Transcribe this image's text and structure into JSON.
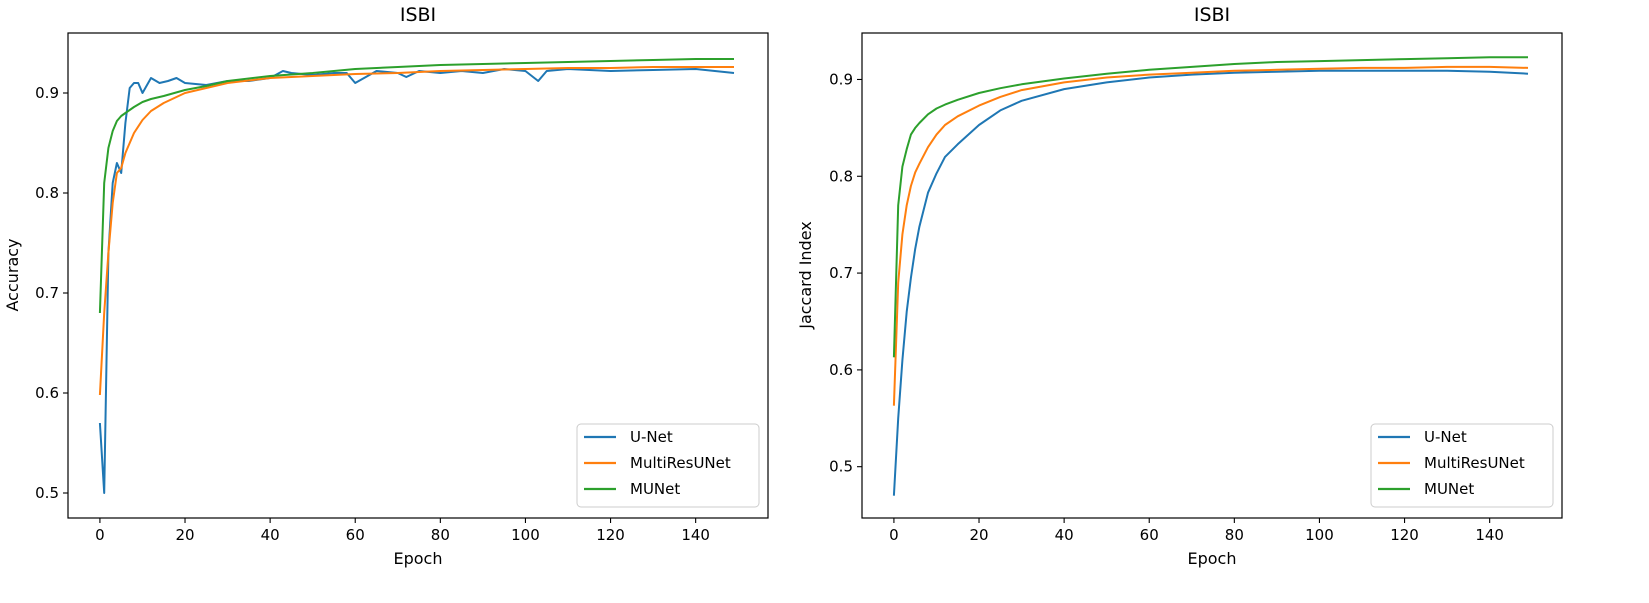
{
  "colors": {
    "U-Net": "#1f77b4",
    "MultiResUNet": "#ff7f0e",
    "MUNet": "#2ca02c"
  },
  "chart_data": [
    {
      "type": "line",
      "title": "ISBI",
      "xlabel": "Epoch",
      "ylabel": "Accuracy",
      "xlim": [
        -7.5,
        157
      ],
      "ylim": [
        0.475,
        0.96
      ],
      "xticks": [
        0,
        20,
        40,
        60,
        80,
        100,
        120,
        140
      ],
      "yticks": [
        0.5,
        0.6,
        0.7,
        0.8,
        0.9
      ],
      "ytick_labels": [
        "0.5",
        "0.6",
        "0.7",
        "0.8",
        "0.9"
      ],
      "legend": "lower-right",
      "series": [
        {
          "name": "U-Net",
          "x": [
            0,
            1,
            2,
            3,
            4,
            5,
            6,
            7,
            8,
            9,
            10,
            12,
            14,
            16,
            18,
            20,
            25,
            30,
            35,
            40,
            43,
            45,
            50,
            55,
            58,
            60,
            65,
            70,
            72,
            75,
            80,
            85,
            90,
            95,
            100,
            103,
            105,
            110,
            120,
            130,
            140,
            149
          ],
          "y": [
            0.57,
            0.5,
            0.74,
            0.81,
            0.83,
            0.82,
            0.87,
            0.905,
            0.91,
            0.91,
            0.9,
            0.915,
            0.91,
            0.912,
            0.915,
            0.91,
            0.908,
            0.912,
            0.912,
            0.915,
            0.922,
            0.92,
            0.918,
            0.92,
            0.92,
            0.91,
            0.922,
            0.92,
            0.916,
            0.922,
            0.92,
            0.922,
            0.92,
            0.924,
            0.922,
            0.912,
            0.922,
            0.924,
            0.922,
            0.923,
            0.924,
            0.92
          ]
        },
        {
          "name": "MultiResUNet",
          "x": [
            0,
            1,
            2,
            3,
            4,
            5,
            6,
            8,
            10,
            12,
            15,
            20,
            25,
            30,
            40,
            50,
            60,
            70,
            80,
            90,
            100,
            110,
            120,
            130,
            140,
            149
          ],
          "y": [
            0.598,
            0.68,
            0.74,
            0.79,
            0.82,
            0.825,
            0.84,
            0.86,
            0.873,
            0.882,
            0.89,
            0.9,
            0.905,
            0.91,
            0.915,
            0.917,
            0.919,
            0.92,
            0.922,
            0.923,
            0.924,
            0.925,
            0.925,
            0.926,
            0.926,
            0.926
          ]
        },
        {
          "name": "MUNet",
          "x": [
            0,
            1,
            2,
            3,
            4,
            5,
            6,
            8,
            10,
            12,
            15,
            20,
            25,
            30,
            40,
            50,
            60,
            70,
            80,
            90,
            100,
            110,
            120,
            130,
            140,
            149
          ],
          "y": [
            0.68,
            0.81,
            0.845,
            0.862,
            0.872,
            0.877,
            0.88,
            0.886,
            0.891,
            0.894,
            0.897,
            0.903,
            0.907,
            0.912,
            0.917,
            0.92,
            0.924,
            0.926,
            0.928,
            0.929,
            0.93,
            0.931,
            0.932,
            0.933,
            0.934,
            0.934
          ]
        }
      ]
    },
    {
      "type": "line",
      "title": "ISBI",
      "xlabel": "Epoch",
      "ylabel": "Jaccard Index",
      "xlim": [
        -7.5,
        157
      ],
      "ylim": [
        0.447,
        0.948
      ],
      "xticks": [
        0,
        20,
        40,
        60,
        80,
        100,
        120,
        140
      ],
      "yticks": [
        0.5,
        0.6,
        0.7,
        0.8,
        0.9
      ],
      "ytick_labels": [
        "0.5",
        "0.6",
        "0.7",
        "0.8",
        "0.9"
      ],
      "legend": "lower-right",
      "series": [
        {
          "name": "U-Net",
          "x": [
            0,
            1,
            2,
            3,
            4,
            5,
            6,
            8,
            10,
            12,
            15,
            20,
            25,
            30,
            40,
            50,
            60,
            70,
            80,
            90,
            100,
            110,
            120,
            130,
            140,
            149
          ],
          "y": [
            0.47,
            0.55,
            0.61,
            0.66,
            0.695,
            0.725,
            0.748,
            0.783,
            0.803,
            0.82,
            0.833,
            0.853,
            0.868,
            0.878,
            0.89,
            0.897,
            0.902,
            0.905,
            0.907,
            0.908,
            0.909,
            0.909,
            0.909,
            0.909,
            0.908,
            0.906
          ]
        },
        {
          "name": "MultiResUNet",
          "x": [
            0,
            1,
            2,
            3,
            4,
            5,
            6,
            8,
            10,
            12,
            15,
            20,
            25,
            30,
            40,
            50,
            60,
            70,
            80,
            90,
            100,
            110,
            120,
            130,
            140,
            149
          ],
          "y": [
            0.563,
            0.69,
            0.74,
            0.77,
            0.79,
            0.804,
            0.813,
            0.83,
            0.843,
            0.853,
            0.862,
            0.873,
            0.882,
            0.889,
            0.897,
            0.902,
            0.905,
            0.907,
            0.909,
            0.91,
            0.911,
            0.912,
            0.912,
            0.913,
            0.913,
            0.912
          ]
        },
        {
          "name": "MUNet",
          "x": [
            0,
            1,
            2,
            3,
            4,
            5,
            6,
            8,
            10,
            12,
            15,
            20,
            25,
            30,
            40,
            50,
            60,
            70,
            80,
            90,
            100,
            110,
            120,
            130,
            140,
            149
          ],
          "y": [
            0.613,
            0.77,
            0.81,
            0.828,
            0.843,
            0.85,
            0.855,
            0.864,
            0.87,
            0.874,
            0.879,
            0.886,
            0.891,
            0.895,
            0.901,
            0.906,
            0.91,
            0.913,
            0.916,
            0.918,
            0.919,
            0.92,
            0.921,
            0.922,
            0.923,
            0.923
          ]
        }
      ]
    }
  ]
}
